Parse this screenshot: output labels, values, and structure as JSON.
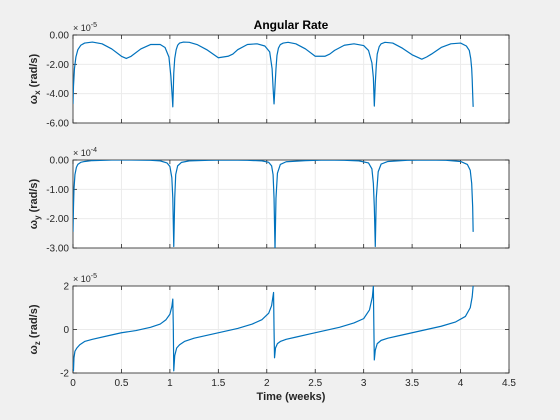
{
  "chart_data": [
    {
      "type": "line",
      "title": "Angular Rate",
      "ylabel": "ω_x (rad/s)",
      "ylabel_main": "ω",
      "ylabel_sub": "x",
      "ylabel_unit": " (rad/s)",
      "exponent_base": "× 10",
      "exponent": "-5",
      "xlim": [
        0,
        4.5
      ],
      "ylim": [
        -6,
        0
      ],
      "yticks": [
        0,
        -2,
        -4,
        -6
      ],
      "ytick_labels": [
        "0.00",
        "-2.00",
        "-4.00",
        "-6.00"
      ],
      "show_xtick_labels": false,
      "grid": true,
      "color": "#0072BD",
      "series": [
        {
          "x": [
            0.0,
            0.005,
            0.015,
            0.03,
            0.05,
            0.08,
            0.12,
            0.2,
            0.3,
            0.4,
            0.5,
            0.55,
            0.6,
            0.7,
            0.8,
            0.9,
            0.95,
            0.99,
            1.01,
            1.025,
            1.03,
            1.035,
            1.04,
            1.05,
            1.065,
            1.08,
            1.1,
            1.14,
            1.2,
            1.28,
            1.38,
            1.5,
            1.6,
            1.65,
            1.7,
            1.8,
            1.9,
            1.98,
            2.03,
            2.055,
            2.065,
            2.075,
            2.085,
            2.095,
            2.105,
            2.12,
            2.14,
            2.17,
            2.22,
            2.3,
            2.4,
            2.5,
            2.6,
            2.65,
            2.7,
            2.8,
            2.9,
            3.0,
            3.05,
            3.085,
            3.1,
            3.11,
            3.12,
            3.13,
            3.14,
            3.16,
            3.18,
            3.22,
            3.3,
            3.4,
            3.5,
            3.6,
            3.65,
            3.7,
            3.8,
            3.9,
            4.0,
            4.06,
            4.09,
            4.105,
            4.115,
            4.12,
            4.125,
            4.13
          ],
          "y": [
            -4.7,
            -3.5,
            -2.3,
            -1.5,
            -1.0,
            -0.7,
            -0.55,
            -0.48,
            -0.6,
            -0.95,
            -1.45,
            -1.6,
            -1.45,
            -0.95,
            -0.65,
            -0.65,
            -0.85,
            -1.5,
            -2.8,
            -4.3,
            -4.9,
            -3.8,
            -2.6,
            -1.6,
            -1.0,
            -0.7,
            -0.55,
            -0.48,
            -0.5,
            -0.65,
            -1.0,
            -1.55,
            -1.45,
            -1.3,
            -1.0,
            -0.65,
            -0.6,
            -0.75,
            -1.15,
            -2.3,
            -3.6,
            -4.7,
            -3.5,
            -2.3,
            -1.4,
            -0.9,
            -0.65,
            -0.55,
            -0.5,
            -0.6,
            -0.95,
            -1.45,
            -1.45,
            -1.3,
            -1.05,
            -0.7,
            -0.6,
            -0.72,
            -1.05,
            -1.9,
            -2.9,
            -4.85,
            -3.3,
            -2.1,
            -1.3,
            -0.8,
            -0.6,
            -0.5,
            -0.55,
            -0.9,
            -1.35,
            -1.65,
            -1.5,
            -1.3,
            -0.85,
            -0.6,
            -0.55,
            -0.75,
            -1.05,
            -1.6,
            -2.3,
            -3.0,
            -4.0,
            -4.9
          ]
        }
      ]
    },
    {
      "type": "line",
      "title": "",
      "ylabel": "ω_y (rad/s)",
      "ylabel_main": "ω",
      "ylabel_sub": "y",
      "ylabel_unit": " (rad/s)",
      "exponent_base": "× 10",
      "exponent": "-4",
      "xlim": [
        0,
        4.5
      ],
      "ylim": [
        -3,
        0
      ],
      "yticks": [
        0,
        -1,
        -2,
        -3
      ],
      "ytick_labels": [
        "0.00",
        "-1.00",
        "-2.00",
        "-3.00"
      ],
      "show_xtick_labels": false,
      "grid": true,
      "color": "#0072BD",
      "series": [
        {
          "x": [
            0.0,
            0.005,
            0.01,
            0.02,
            0.035,
            0.05,
            0.08,
            0.12,
            0.2,
            0.4,
            0.6,
            0.8,
            0.9,
            0.97,
            1.0,
            1.02,
            1.03,
            1.04,
            1.05,
            1.06,
            1.08,
            1.12,
            1.2,
            1.4,
            1.6,
            1.8,
            1.95,
            2.02,
            2.05,
            2.065,
            2.075,
            2.085,
            2.095,
            2.11,
            2.14,
            2.2,
            2.4,
            2.6,
            2.8,
            2.95,
            3.05,
            3.085,
            3.1,
            3.11,
            3.12,
            3.13,
            3.15,
            3.18,
            3.25,
            3.45,
            3.65,
            3.85,
            4.0,
            4.07,
            4.1,
            4.115,
            4.125,
            4.13
          ],
          "y": [
            -2.45,
            -1.6,
            -1.0,
            -0.5,
            -0.25,
            -0.15,
            -0.08,
            -0.05,
            -0.02,
            0.0,
            0.0,
            -0.01,
            -0.03,
            -0.1,
            -0.22,
            -0.6,
            -1.3,
            -2.95,
            -1.3,
            -0.5,
            -0.2,
            -0.08,
            -0.03,
            -0.01,
            0.0,
            -0.01,
            -0.03,
            -0.08,
            -0.2,
            -0.5,
            -1.3,
            -3.05,
            -1.3,
            -0.45,
            -0.15,
            -0.06,
            -0.02,
            0.0,
            -0.01,
            -0.03,
            -0.1,
            -0.3,
            -0.8,
            -1.6,
            -2.95,
            -1.3,
            -0.4,
            -0.14,
            -0.05,
            -0.01,
            0.0,
            -0.01,
            -0.05,
            -0.15,
            -0.35,
            -0.8,
            -1.6,
            -2.45
          ]
        }
      ]
    },
    {
      "type": "line",
      "title": "",
      "xlabel": "Time (weeks)",
      "ylabel": "ω_z (rad/s)",
      "ylabel_main": "ω",
      "ylabel_sub": "z",
      "ylabel_unit": " (rad/s)",
      "exponent_base": "× 10",
      "exponent": "-5",
      "xlim": [
        0,
        4.5
      ],
      "ylim": [
        -2,
        2
      ],
      "xticks": [
        0,
        0.5,
        1,
        1.5,
        2,
        2.5,
        3,
        3.5,
        4,
        4.5
      ],
      "xtick_labels": [
        "0",
        "0.5",
        "1",
        "1.5",
        "2",
        "2.5",
        "3",
        "3.5",
        "4",
        "4.5"
      ],
      "yticks": [
        2,
        0,
        -2
      ],
      "ytick_labels": [
        "2",
        "0",
        "-2"
      ],
      "show_xtick_labels": true,
      "grid": true,
      "color": "#0072BD",
      "series": [
        {
          "x": [
            0.0,
            0.005,
            0.01,
            0.02,
            0.04,
            0.07,
            0.12,
            0.2,
            0.35,
            0.5,
            0.65,
            0.8,
            0.9,
            0.96,
            1.0,
            1.02,
            1.03,
            1.035,
            1.04,
            1.05,
            1.07,
            1.1,
            1.15,
            1.25,
            1.4,
            1.55,
            1.7,
            1.85,
            1.95,
            2.02,
            2.05,
            2.07,
            2.075,
            2.08,
            2.09,
            2.11,
            2.14,
            2.2,
            2.3,
            2.45,
            2.6,
            2.75,
            2.9,
            3.0,
            3.06,
            3.09,
            3.1,
            3.105,
            3.11,
            3.12,
            3.14,
            3.18,
            3.25,
            3.35,
            3.5,
            3.65,
            3.8,
            3.95,
            4.05,
            4.1,
            4.12,
            4.13
          ],
          "y": [
            -1.5,
            -1.9,
            -1.3,
            -1.0,
            -0.85,
            -0.7,
            -0.55,
            -0.45,
            -0.3,
            -0.15,
            -0.05,
            0.1,
            0.25,
            0.45,
            0.7,
            1.05,
            1.4,
            0.2,
            -1.9,
            -1.2,
            -0.85,
            -0.7,
            -0.55,
            -0.4,
            -0.25,
            -0.1,
            0.05,
            0.25,
            0.45,
            0.75,
            1.1,
            1.7,
            0.0,
            -1.3,
            -0.85,
            -0.65,
            -0.55,
            -0.45,
            -0.35,
            -0.2,
            -0.05,
            0.1,
            0.3,
            0.5,
            0.9,
            1.5,
            2.0,
            0.2,
            -1.4,
            -0.95,
            -0.65,
            -0.5,
            -0.4,
            -0.3,
            -0.15,
            0.0,
            0.15,
            0.35,
            0.6,
            1.0,
            1.5,
            2.0
          ]
        }
      ]
    }
  ]
}
